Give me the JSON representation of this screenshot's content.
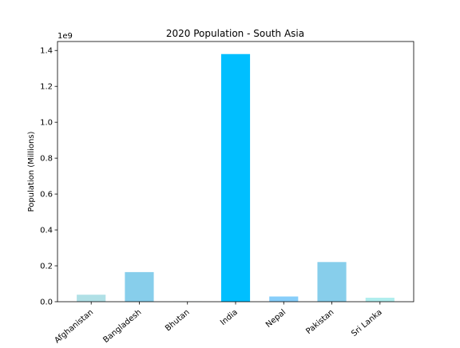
{
  "chart_data": {
    "type": "bar",
    "title": "2020 Population - South Asia",
    "xlabel": "",
    "ylabel": "Population (Millions)",
    "y_offset_label": "1e9",
    "ylim": [
      0,
      1.45
    ],
    "y_scale": 1000000000,
    "yticks": [
      0.0,
      0.2,
      0.4,
      0.6,
      0.8,
      1.0,
      1.2,
      1.4
    ],
    "ytick_labels": [
      "0.0",
      "0.2",
      "0.4",
      "0.6",
      "0.8",
      "1.0",
      "1.2",
      "1.4"
    ],
    "categories": [
      "Afghanistan",
      "Bangladesh",
      "Bhutan",
      "India",
      "Nepal",
      "Pakistan",
      "Sri Lanka"
    ],
    "values": [
      0.039,
      0.165,
      0.0008,
      1.38,
      0.029,
      0.221,
      0.022
    ],
    "colors": [
      "#b0e0e6",
      "#87ceeb",
      "#add8e6",
      "#00bfff",
      "#87cefa",
      "#87ceeb",
      "#afeeee"
    ],
    "grid": false,
    "legend": "none"
  }
}
